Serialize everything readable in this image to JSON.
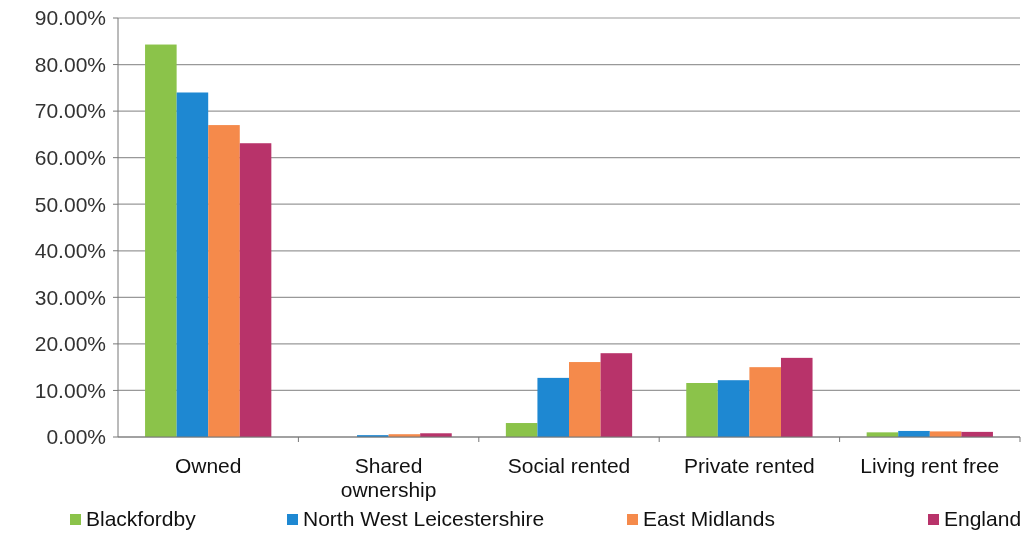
{
  "chart_data": {
    "type": "bar",
    "categories": [
      "Owned",
      "Shared ownership",
      "Social rented",
      "Private rented",
      "Living rent free"
    ],
    "series": [
      {
        "name": "Blackfordby",
        "color": "#8bc34a",
        "values": [
          84.3,
          0,
          3.0,
          11.6,
          1.0
        ]
      },
      {
        "name": "North West Leicestershire",
        "color": "#1e88d2",
        "values": [
          74.0,
          0.4,
          12.7,
          12.2,
          1.3
        ]
      },
      {
        "name": "East Midlands",
        "color": "#f58a4b",
        "values": [
          67.0,
          0.6,
          16.1,
          15.0,
          1.2
        ]
      },
      {
        "name": "England",
        "color": "#b8336a",
        "values": [
          63.1,
          0.8,
          18.0,
          17.0,
          1.1
        ]
      }
    ],
    "ylim": [
      0,
      90
    ],
    "yticks": [
      {
        "value": 0,
        "label": "0.00%"
      },
      {
        "value": 10,
        "label": "10.00%"
      },
      {
        "value": 20,
        "label": "20.00%"
      },
      {
        "value": 30,
        "label": "30.00%"
      },
      {
        "value": 40,
        "label": "40.00%"
      },
      {
        "value": 50,
        "label": "50.00%"
      },
      {
        "value": 60,
        "label": "60.00%"
      },
      {
        "value": 70,
        "label": "70.00%"
      },
      {
        "value": 80,
        "label": "80.00%"
      },
      {
        "value": 90,
        "label": "90.00%"
      }
    ],
    "grid": "y",
    "legend": "bottom"
  }
}
